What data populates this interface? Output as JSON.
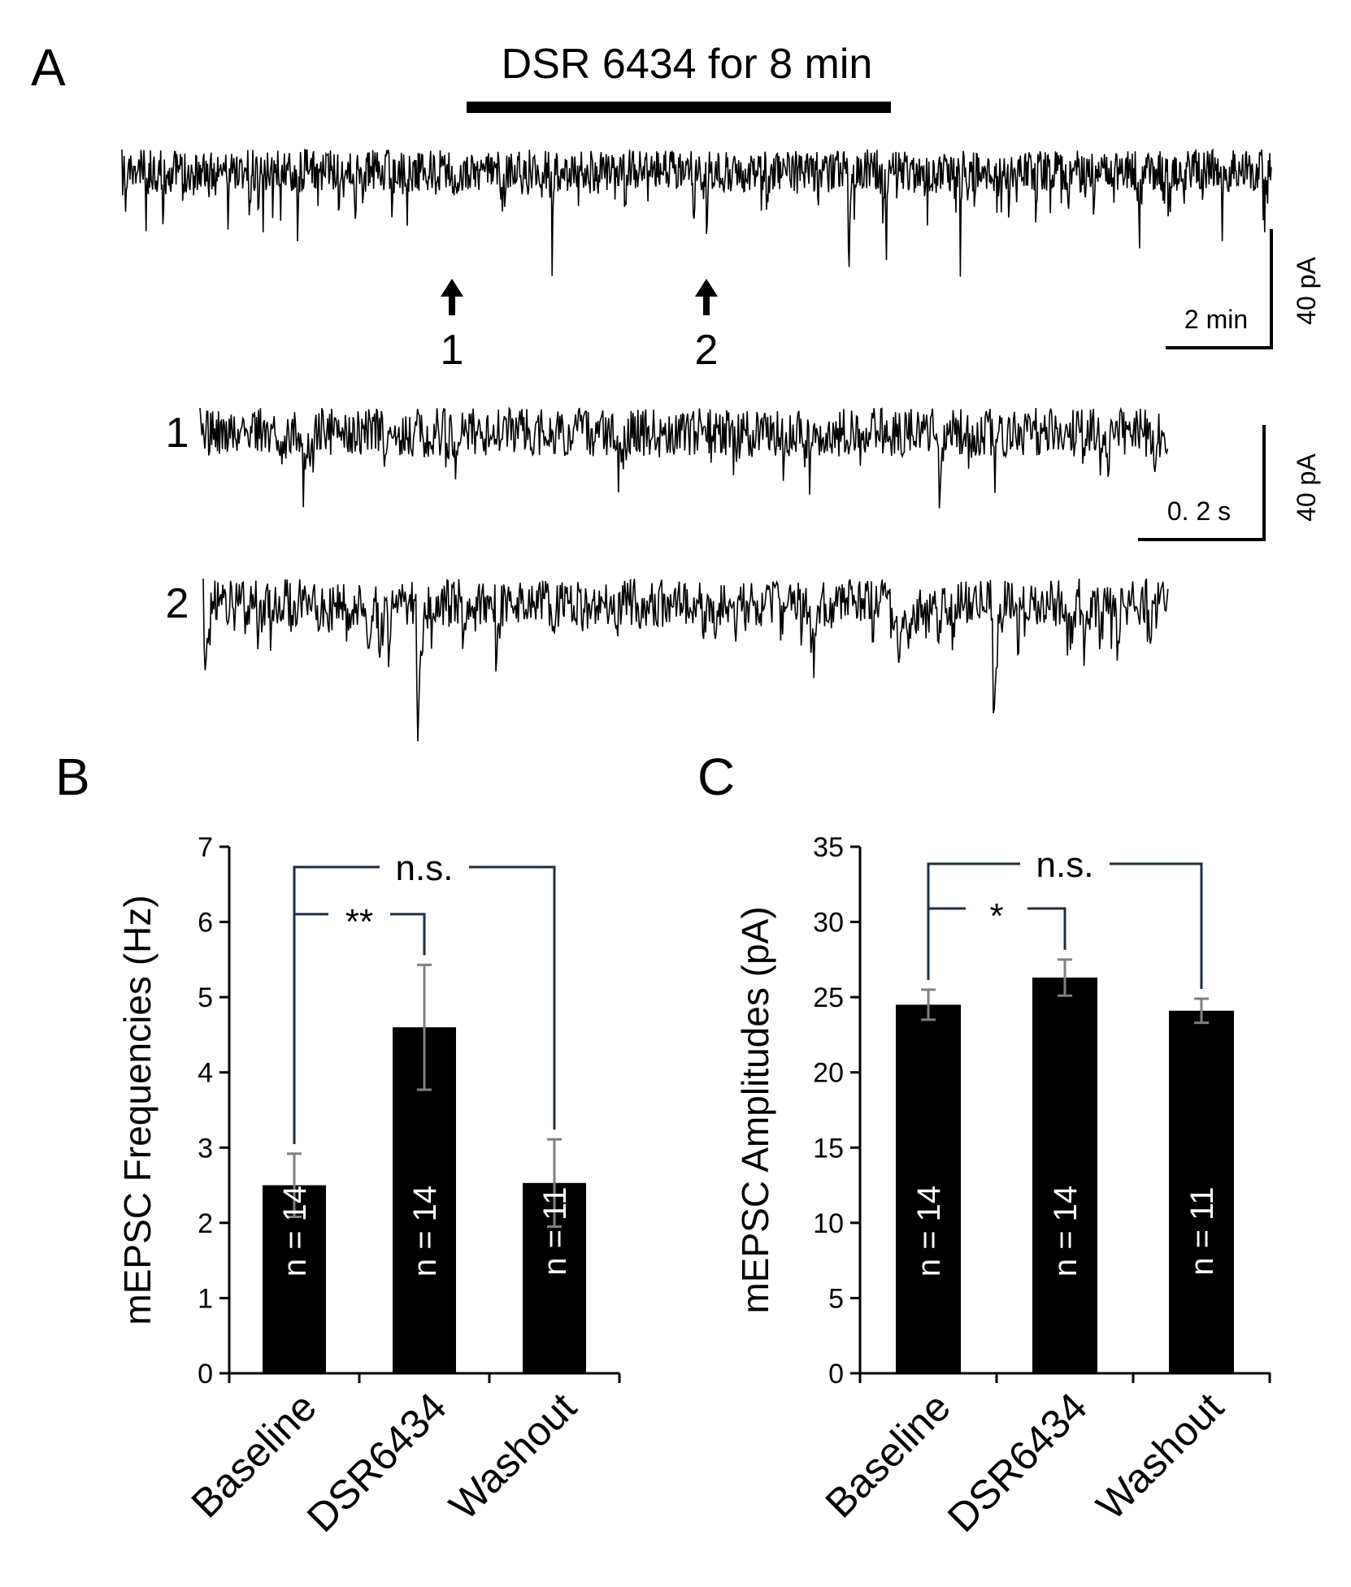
{
  "panel_a": {
    "label": "A",
    "drug_bar_label": "DSR 6434 for 8 min",
    "markers": [
      "1",
      "2"
    ],
    "trace_labels": [
      "1",
      "2"
    ],
    "scale_overview": {
      "time": "2 min",
      "current": "40 pA"
    },
    "scale_zoom": {
      "time": "0. 2 s",
      "current": "40 pA"
    }
  },
  "chart_data": [
    {
      "panel": "B",
      "type": "bar",
      "categories": [
        "Baseline",
        "DSR6434",
        "Washout"
      ],
      "values": [
        2.5,
        4.6,
        2.53
      ],
      "error": [
        0.42,
        0.83,
        0.58
      ],
      "n_labels": [
        "n = 14",
        "n = 14",
        "n = 11"
      ],
      "ylabel": "mEPSC Frequencies (Hz)",
      "ylim": [
        0,
        7
      ],
      "yticks": [
        0,
        1,
        2,
        3,
        4,
        5,
        6,
        7
      ],
      "bar_color": "#000000",
      "comparisons": [
        {
          "from": 0,
          "to": 2,
          "label": "n.s."
        },
        {
          "from": 0,
          "to": 1,
          "label": "**"
        }
      ]
    },
    {
      "panel": "C",
      "type": "bar",
      "categories": [
        "Baseline",
        "DSR6434",
        "Washout"
      ],
      "values": [
        24.5,
        26.3,
        24.1
      ],
      "error": [
        1.0,
        1.2,
        0.8
      ],
      "n_labels": [
        "n = 14",
        "n = 14",
        "n = 11"
      ],
      "ylabel": "mEPSC Amplitudes (pA)",
      "ylim": [
        0,
        35
      ],
      "yticks": [
        0,
        5,
        10,
        15,
        20,
        25,
        30,
        35
      ],
      "bar_color": "#000000",
      "comparisons": [
        {
          "from": 0,
          "to": 2,
          "label": "n.s."
        },
        {
          "from": 0,
          "to": 1,
          "label": "*"
        }
      ]
    }
  ]
}
